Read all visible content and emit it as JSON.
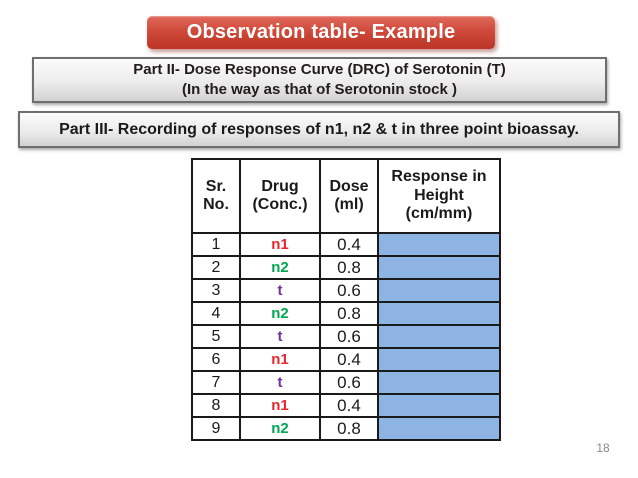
{
  "slide": {
    "title": "Observation table- Example",
    "part2_line1": "Part II- Dose Response Curve (DRC) of Serotonin (T)",
    "part2_line2": "(In the way as that of Serotonin stock )",
    "part3": "Part III- Recording of responses of n1, n2 & t in three point bioassay.",
    "page_number": "18"
  },
  "table": {
    "headers": [
      "Sr.\nNo.",
      "Drug\n(Conc.)",
      "Dose\n(ml)",
      "Response in\nHeight\n(cm/mm)"
    ],
    "response_cell_color": "#8EB4E3",
    "rows": [
      {
        "sr": "1",
        "drug": "n1",
        "drug_color": "#E8262D",
        "dose": "0.4",
        "response": ""
      },
      {
        "sr": "2",
        "drug": "n2",
        "drug_color": "#00A651",
        "dose": "0.8",
        "response": ""
      },
      {
        "sr": "3",
        "drug": "t",
        "drug_color": "#7030A0",
        "dose": "0.6",
        "response": ""
      },
      {
        "sr": "4",
        "drug": "n2",
        "drug_color": "#00A651",
        "dose": "0.8",
        "response": ""
      },
      {
        "sr": "5",
        "drug": "t",
        "drug_color": "#7030A0",
        "dose": "0.6",
        "response": ""
      },
      {
        "sr": "6",
        "drug": "n1",
        "drug_color": "#E8262D",
        "dose": "0.4",
        "response": ""
      },
      {
        "sr": "7",
        "drug": "t",
        "drug_color": "#7030A0",
        "dose": "0.6",
        "response": ""
      },
      {
        "sr": "8",
        "drug": "n1",
        "drug_color": "#E8262D",
        "dose": "0.4",
        "response": ""
      },
      {
        "sr": "9",
        "drug": "n2",
        "drug_color": "#00A651",
        "dose": "0.8",
        "response": ""
      }
    ]
  },
  "colors": {
    "title_bg": "#C84130",
    "title_text": "#FFFFFF",
    "gray_box_border": "#6E6E6E",
    "gray_box_bg_top": "#FBFBFB",
    "gray_box_bg_bottom": "#D2D2D2",
    "table_border": "#1A1A1A",
    "response_fill": "#8EB4E3",
    "drug_n1": "#E8262D",
    "drug_n2": "#00A651",
    "drug_t": "#7030A0",
    "page_number_text": "#8A8A8A"
  }
}
